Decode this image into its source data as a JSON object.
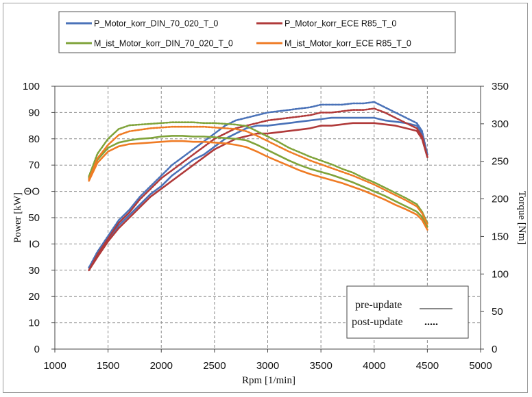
{
  "chart_data": {
    "type": "line",
    "xlabel": "Rpm [1/min]",
    "ylabel_left": "Power [kW]",
    "ylabel_right": "Torque [Nm]",
    "xlim": [
      1000,
      5000
    ],
    "ylim_left": [
      0,
      100
    ],
    "ylim_right": [
      0,
      350
    ],
    "x_ticks": [
      1000,
      1500,
      2000,
      2500,
      3000,
      3500,
      4000,
      4500,
      5000
    ],
    "y_left_ticks": [
      0,
      10,
      20,
      30,
      40,
      50,
      60,
      70,
      80,
      90,
      100
    ],
    "y_left_tick_labels": [
      "0",
      "10",
      "20",
      "30",
      "ΙO",
      "50",
      "ΘO",
      "70",
      "80",
      "90",
      "100"
    ],
    "y_right_ticks": [
      0,
      50,
      100,
      150,
      200,
      250,
      300,
      350
    ],
    "grid": true,
    "legend_position": "top",
    "note": {
      "pre_label": "pre-update",
      "post_label": "post-update",
      "post_marker": "....."
    },
    "series": [
      {
        "name": "P_Motor_korr_DIN_70_020_T_0",
        "axis": "left",
        "color": "#4a72b8",
        "phase": "post-update",
        "x": [
          1320,
          1400,
          1500,
          1600,
          1700,
          1800,
          1900,
          2000,
          2100,
          2200,
          2300,
          2400,
          2500,
          2600,
          2700,
          2800,
          2900,
          3000,
          3100,
          3200,
          3300,
          3400,
          3500,
          3600,
          3700,
          3800,
          3900,
          4000,
          4100,
          4200,
          4300,
          4400,
          4450,
          4500
        ],
        "y": [
          31,
          37,
          43,
          49,
          53,
          58,
          62,
          66,
          70,
          73,
          76,
          79,
          82,
          85,
          87,
          88,
          89,
          90,
          90.5,
          91,
          91.5,
          92,
          93,
          93,
          93,
          93.5,
          93.5,
          94,
          92,
          90,
          88,
          86,
          83,
          74
        ]
      },
      {
        "name": "P_Motor_korr_DIN_70_020_T_0",
        "axis": "left",
        "color": "#4a72b8",
        "phase": "pre-update",
        "x": [
          1320,
          1400,
          1500,
          1600,
          1700,
          1800,
          1900,
          2000,
          2100,
          2200,
          2300,
          2400,
          2500,
          2600,
          2700,
          2800,
          2900,
          3000,
          3100,
          3200,
          3300,
          3400,
          3500,
          3600,
          3700,
          3800,
          3900,
          4000,
          4100,
          4200,
          4300,
          4400,
          4450,
          4500
        ],
        "y": [
          31,
          36,
          42,
          47,
          51,
          55,
          59,
          62,
          66,
          69,
          72,
          74,
          77,
          80,
          82,
          84,
          85,
          85,
          85.5,
          86,
          86.5,
          87,
          87.5,
          88,
          88,
          88,
          88,
          88,
          87,
          86.5,
          86,
          85,
          82,
          74
        ]
      },
      {
        "name": "P_Motor_korr_ECE R85_T_0",
        "axis": "left",
        "color": "#b03a3a",
        "phase": "post-update",
        "x": [
          1320,
          1400,
          1500,
          1600,
          1700,
          1800,
          1900,
          2000,
          2100,
          2200,
          2300,
          2400,
          2500,
          2600,
          2700,
          2800,
          2900,
          3000,
          3100,
          3200,
          3300,
          3400,
          3500,
          3600,
          3700,
          3800,
          3900,
          4000,
          4100,
          4200,
          4300,
          4400,
          4450,
          4500
        ],
        "y": [
          30,
          36,
          42,
          48,
          52,
          57,
          61,
          65,
          68,
          71,
          74,
          77,
          80,
          82,
          84,
          85,
          86,
          87,
          87.5,
          88,
          88.5,
          89,
          90,
          90,
          90.5,
          91,
          91,
          91.5,
          90,
          88,
          86,
          84,
          81,
          73
        ]
      },
      {
        "name": "P_Motor_korr_ECE R85_T_0",
        "axis": "left",
        "color": "#b03a3a",
        "phase": "pre-update",
        "x": [
          1320,
          1400,
          1500,
          1600,
          1700,
          1800,
          1900,
          2000,
          2100,
          2200,
          2300,
          2400,
          2500,
          2600,
          2700,
          2800,
          2900,
          3000,
          3100,
          3200,
          3300,
          3400,
          3500,
          3600,
          3700,
          3800,
          3900,
          4000,
          4100,
          4200,
          4300,
          4400,
          4450,
          4500
        ],
        "y": [
          30,
          35,
          41,
          46,
          50,
          54,
          58,
          61,
          64,
          67,
          70,
          73,
          76,
          78,
          80,
          81,
          82,
          82,
          82.5,
          83,
          83.5,
          84,
          85,
          85,
          85.5,
          86,
          86,
          86,
          85.5,
          85,
          84,
          83,
          80,
          73
        ]
      },
      {
        "name": "M_ist_Motor_korr_DIN_70_020_T_0",
        "axis": "right",
        "color": "#7fa33a",
        "phase": "post-update",
        "x": [
          1320,
          1400,
          1500,
          1600,
          1700,
          1800,
          1900,
          2000,
          2100,
          2200,
          2300,
          2400,
          2500,
          2600,
          2700,
          2800,
          2900,
          3000,
          3100,
          3200,
          3300,
          3400,
          3500,
          3600,
          3700,
          3800,
          3900,
          4000,
          4100,
          4200,
          4300,
          4400,
          4450,
          4500
        ],
        "y": [
          230,
          260,
          280,
          293,
          298,
          299,
          300,
          301,
          302,
          302,
          302,
          301,
          301,
          300,
          299,
          297,
          290,
          283,
          276,
          268,
          262,
          256,
          251,
          246,
          240,
          235,
          228,
          222,
          215,
          208,
          201,
          193,
          183,
          168
        ]
      },
      {
        "name": "M_ist_Motor_korr_DIN_70_020_T_0",
        "axis": "right",
        "color": "#7fa33a",
        "phase": "pre-update",
        "x": [
          1320,
          1400,
          1500,
          1600,
          1700,
          1800,
          1900,
          2000,
          2100,
          2200,
          2300,
          2400,
          2500,
          2600,
          2700,
          2800,
          2900,
          3000,
          3100,
          3200,
          3300,
          3400,
          3500,
          3600,
          3700,
          3800,
          3900,
          4000,
          4100,
          4200,
          4300,
          4400,
          4450,
          4500
        ],
        "y": [
          228,
          252,
          268,
          275,
          278,
          280,
          281,
          283,
          284,
          284,
          283,
          283,
          282,
          281,
          280,
          278,
          272,
          265,
          258,
          251,
          245,
          240,
          236,
          232,
          227,
          222,
          216,
          210,
          204,
          197,
          190,
          183,
          176,
          163
        ]
      },
      {
        "name": "M_ist_Motor_korr_ECE R85_T_0",
        "axis": "right",
        "color": "#ef7b24",
        "phase": "post-update",
        "x": [
          1320,
          1400,
          1500,
          1600,
          1700,
          1800,
          1900,
          2000,
          2100,
          2200,
          2300,
          2400,
          2500,
          2600,
          2700,
          2800,
          2900,
          3000,
          3100,
          3200,
          3300,
          3400,
          3500,
          3600,
          3700,
          3800,
          3900,
          4000,
          4100,
          4200,
          4300,
          4400,
          4450,
          4500
        ],
        "y": [
          226,
          254,
          272,
          285,
          290,
          292,
          294,
          295,
          296,
          296,
          296,
          296,
          295,
          294,
          293,
          290,
          284,
          277,
          270,
          263,
          257,
          251,
          246,
          241,
          236,
          231,
          225,
          219,
          212,
          205,
          198,
          190,
          181,
          166
        ]
      },
      {
        "name": "M_ist_Motor_korr_ECE R85_T_0",
        "axis": "right",
        "color": "#ef7b24",
        "phase": "pre-update",
        "x": [
          1320,
          1400,
          1500,
          1600,
          1700,
          1800,
          1900,
          2000,
          2100,
          2200,
          2300,
          2400,
          2500,
          2600,
          2700,
          2800,
          2900,
          3000,
          3100,
          3200,
          3300,
          3400,
          3500,
          3600,
          3700,
          3800,
          3900,
          4000,
          4100,
          4200,
          4300,
          4400,
          4450,
          4500
        ],
        "y": [
          224,
          248,
          263,
          270,
          273,
          274,
          275,
          276,
          277,
          277,
          276,
          276,
          275,
          274,
          272,
          269,
          263,
          256,
          250,
          244,
          238,
          233,
          229,
          225,
          221,
          216,
          211,
          205,
          199,
          192,
          186,
          179,
          172,
          159
        ]
      }
    ]
  }
}
